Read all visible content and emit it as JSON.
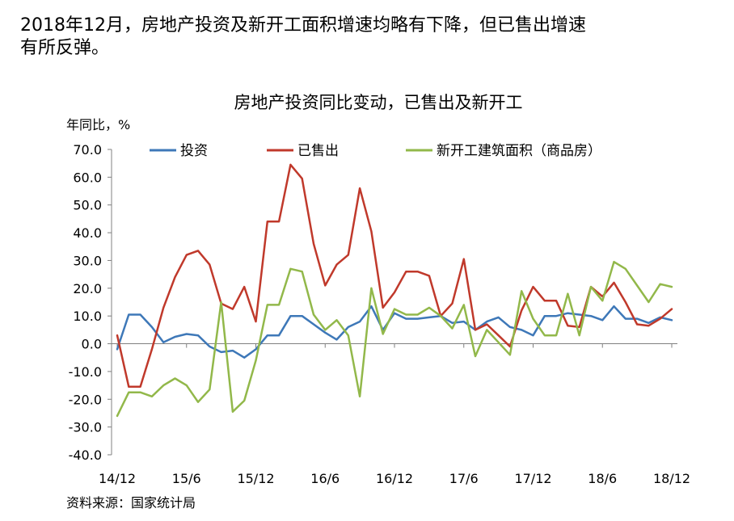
{
  "page": {
    "headline_line1": "2018年12月，房地产投资及新开工面积增速均略有下降，但已售出增速",
    "headline_line2": "有所反弹。",
    "source": "资料来源：国家统计局"
  },
  "chart_data": {
    "type": "line",
    "title": "房地产投资同比变动，已售出及新开工",
    "ylabel": "年同比，%",
    "ylim": [
      -40,
      70
    ],
    "yticks": [
      70,
      60,
      50,
      40,
      30,
      20,
      10,
      0,
      -10,
      -20,
      -30,
      -40
    ],
    "ytick_labels": [
      "70.0",
      "60.0",
      "50.0",
      "40.0",
      "30.0",
      "20.0",
      "10.0",
      "0.0",
      "-10.0",
      "-20.0",
      "-30.0",
      "-40.0"
    ],
    "grid": false,
    "legend_position": "top",
    "x": [
      "14/12",
      "15/1",
      "15/2",
      "15/3",
      "15/4",
      "15/5",
      "15/6",
      "15/7",
      "15/8",
      "15/9",
      "15/10",
      "15/11",
      "15/12",
      "16/1",
      "16/2",
      "16/3",
      "16/4",
      "16/5",
      "16/6",
      "16/7",
      "16/8",
      "16/9",
      "16/10",
      "16/11",
      "16/12",
      "17/1",
      "17/2",
      "17/3",
      "17/4",
      "17/5",
      "17/6",
      "17/7",
      "17/8",
      "17/9",
      "17/10",
      "17/11",
      "17/12",
      "18/1",
      "18/2",
      "18/3",
      "18/4",
      "18/5",
      "18/6",
      "18/7",
      "18/8",
      "18/9",
      "18/10",
      "18/11",
      "18/12"
    ],
    "xtick_labels": [
      "14/12",
      "15/6",
      "15/12",
      "16/6",
      "16/12",
      "17/6",
      "17/12",
      "18/6",
      "18/12"
    ],
    "series": [
      {
        "name": "投资",
        "color": "#3E78B8",
        "values": [
          -2,
          10.5,
          10.5,
          6,
          0.5,
          2.5,
          3.5,
          3,
          -1,
          -3,
          -2.5,
          -5,
          -2,
          3,
          3,
          10,
          10,
          7,
          4,
          1.5,
          6,
          8,
          13.5,
          5,
          11,
          9,
          9,
          9.5,
          10,
          7.5,
          8,
          5,
          8,
          9.5,
          6,
          5,
          3,
          10,
          10,
          11,
          10.5,
          10,
          8.5,
          13.5,
          9,
          9,
          7.5,
          9.5,
          8.5
        ]
      },
      {
        "name": "已售出",
        "color": "#C0392B",
        "values": [
          3,
          -15.5,
          -15.5,
          -2,
          13,
          24,
          32,
          33.5,
          28.5,
          14.5,
          12.5,
          20.5,
          8,
          44,
          44,
          64.5,
          59.5,
          36,
          21,
          28.5,
          32,
          56,
          40.5,
          13,
          18.5,
          26,
          26,
          24.5,
          10,
          14.5,
          30.5,
          5,
          7,
          3,
          -1,
          12,
          20.5,
          15.5,
          15.5,
          6.5,
          6,
          20.5,
          17,
          22,
          15,
          7,
          6.5,
          9,
          12.5
        ]
      },
      {
        "name": "新开工建筑面积（商品房）",
        "color": "#92B84A",
        "values": [
          -26,
          -17.5,
          -17.5,
          -19,
          -15,
          -12.5,
          -15,
          -21,
          -16.5,
          15,
          -24.5,
          -20.5,
          -6,
          14,
          14,
          27,
          26,
          10.5,
          5,
          8.5,
          3,
          -19,
          20,
          3.5,
          12.5,
          10.5,
          10.5,
          13,
          10,
          5.5,
          14,
          -4.5,
          5,
          0.5,
          -4,
          19,
          9,
          3,
          3,
          18,
          3,
          20.5,
          15.5,
          29.5,
          27,
          21,
          15,
          21.5,
          20.5
        ]
      }
    ]
  }
}
